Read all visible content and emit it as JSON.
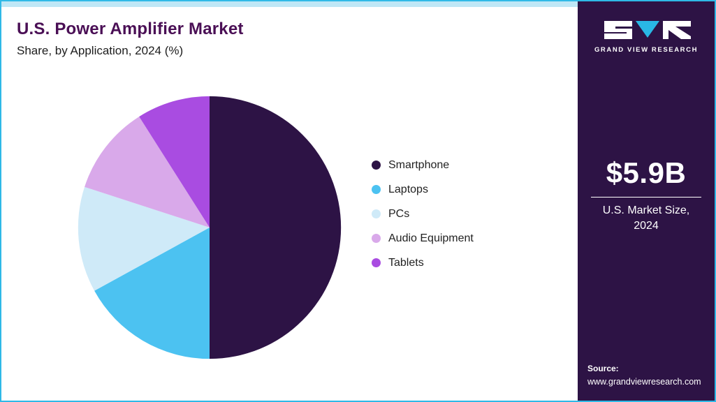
{
  "header": {
    "title": "U.S. Power Amplifier Market",
    "subtitle": "Share, by Application, 2024 (%)"
  },
  "sidebar": {
    "brand_name": "GRAND VIEW RESEARCH",
    "market_size": "$5.9B",
    "market_size_label": "U.S. Market Size, 2024",
    "source_label": "Source:",
    "source_url": "www.grandviewresearch.com",
    "background_color": "#2d1345",
    "accent_color": "#29b8e5"
  },
  "chart_data": {
    "type": "pie",
    "title": "U.S. Power Amplifier Market Share, by Application, 2024 (%)",
    "categories": [
      "Smartphone",
      "Laptops",
      "PCs",
      "Audio Equipment",
      "Tablets"
    ],
    "values": [
      50,
      17,
      13,
      11,
      9
    ],
    "colors": [
      "#2d1345",
      "#4cc2f1",
      "#cfeaf8",
      "#d9a9ea",
      "#a94ce1"
    ],
    "unit": "%",
    "start_angle_deg": 0,
    "direction": "clockwise",
    "legend_position": "right"
  },
  "theme": {
    "border_color": "#2fb9e7",
    "top_strip_color": "#bfe7f6",
    "title_color": "#4a0f55",
    "background_color": "#ffffff"
  }
}
